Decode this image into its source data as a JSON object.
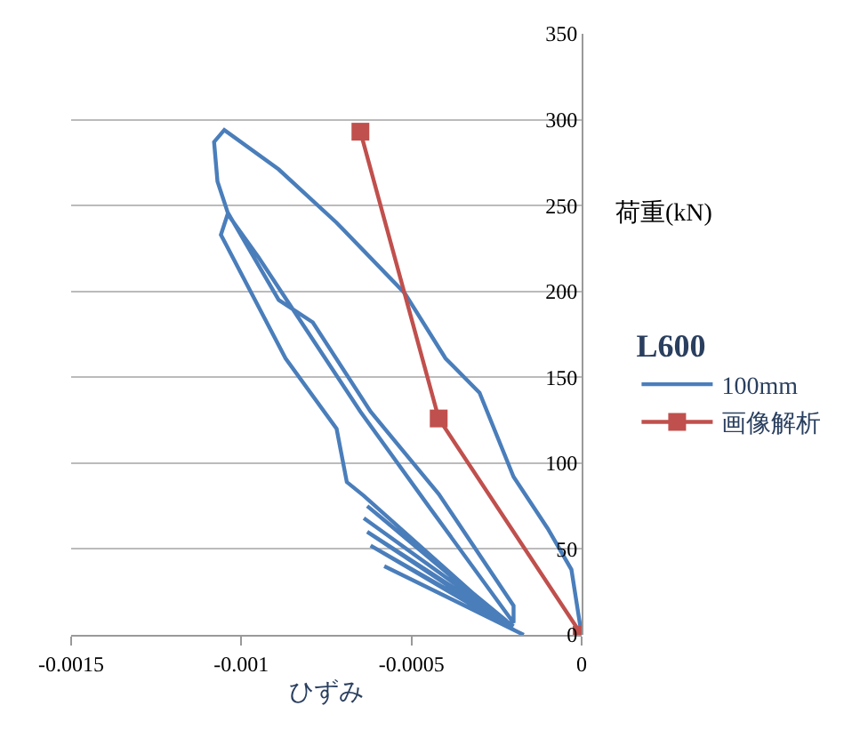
{
  "chart_data": {
    "type": "line",
    "xlabel": "ひずみ",
    "ylabel": "荷重(kN)",
    "legend_title": "L600",
    "xlim": [
      -0.0015,
      0
    ],
    "xticks": [
      -0.0015,
      -0.001,
      -0.0005,
      0
    ],
    "ylim": [
      0,
      350
    ],
    "yticks": [
      0,
      50,
      100,
      150,
      200,
      250,
      300,
      350
    ],
    "grid": "y",
    "legend": "right",
    "series": [
      {
        "name": "100mm",
        "color": "#4a7ebb",
        "marker": "none",
        "x": [
          0,
          -3e-05,
          -0.0001,
          -0.0002,
          -0.0003,
          -0.0004,
          -0.00052,
          -0.00072,
          -0.00089,
          -0.00105,
          -0.00108,
          -0.00107,
          -0.00104,
          -0.00089,
          -0.00079,
          -0.00062,
          -0.00042,
          -0.0002,
          -0.0002,
          -0.00045,
          -0.00065,
          -0.0008,
          -0.00095,
          -0.00104,
          -0.00106,
          -0.00087,
          -0.00072,
          -0.00069,
          -0.00064,
          -0.00025,
          -0.00063,
          -0.00022,
          -0.00064,
          -0.0002,
          -0.00063,
          -0.00025,
          -0.00062,
          -0.0002,
          -0.00058,
          -0.00017
        ],
        "values": [
          0,
          38,
          62,
          92,
          141,
          161,
          199,
          240,
          271,
          294,
          287,
          264,
          246,
          195,
          182,
          130,
          82,
          17,
          7,
          75,
          130,
          175,
          220,
          245,
          233,
          161,
          120,
          89,
          81,
          12,
          75,
          8,
          68,
          5,
          60,
          10,
          52,
          3,
          40,
          0
        ]
      },
      {
        "name": "画像解析",
        "color": "#c0504d",
        "marker": "square",
        "x": [
          -0.00065,
          -0.00042,
          0
        ],
        "values": [
          293,
          126,
          0
        ]
      }
    ]
  }
}
